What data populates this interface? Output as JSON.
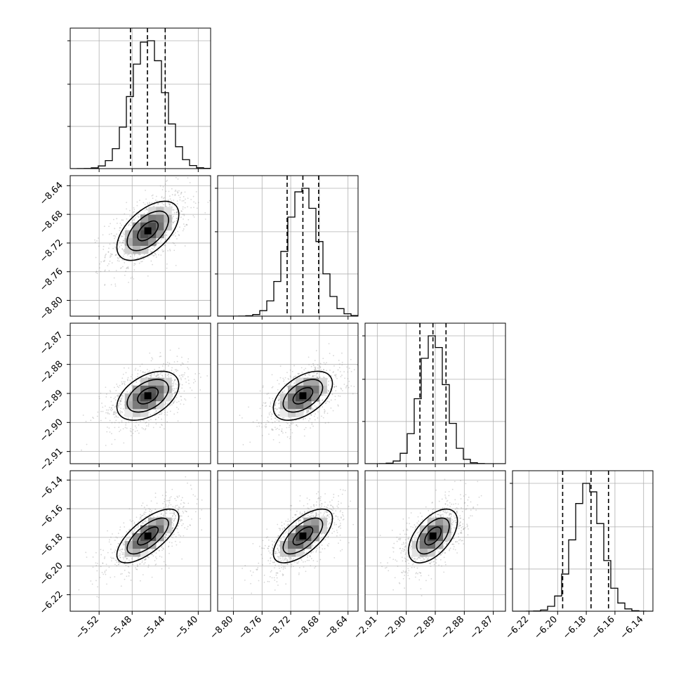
{
  "chart_data": {
    "type": "corner",
    "grid": true,
    "parameters": [
      {
        "range": [
          -5.555,
          -5.385
        ],
        "ticks": [
          "-5.52",
          "-5.48",
          "-5.44",
          "-5.40"
        ],
        "tick_values": [
          -5.52,
          -5.48,
          -5.44,
          -5.4
        ],
        "quantiles": [
          -5.482,
          -5.4615,
          -5.44
        ],
        "mean": -5.461,
        "sd": 0.02
      },
      {
        "range": [
          -8.822,
          -8.626
        ],
        "ticks": [
          "-8.64",
          "-8.68",
          "-8.72",
          "-8.76",
          "-8.80"
        ],
        "tick_values": [
          -8.64,
          -8.68,
          -8.72,
          -8.76,
          -8.8
        ],
        "quantiles": [
          -8.725,
          -8.703,
          -8.681
        ],
        "mean": -8.703,
        "sd": 0.022
      },
      {
        "range": [
          -2.9142,
          -2.8658
        ],
        "ticks": [
          "-2.87",
          "-2.88",
          "-2.89",
          "-2.90",
          "-2.91"
        ],
        "tick_values": [
          -2.87,
          -2.88,
          -2.89,
          -2.9,
          -2.91
        ],
        "quantiles": [
          -2.8953,
          -2.8908,
          -2.8863
        ],
        "mean": -2.8908,
        "sd": 0.0045
      },
      {
        "range": [
          -6.2315,
          -6.1335
        ],
        "ticks": [
          "-6.14",
          "-6.16",
          "-6.18",
          "-6.20",
          "-6.22"
        ],
        "tick_values": [
          -6.14,
          -6.16,
          -6.18,
          -6.2,
          -6.22
        ],
        "quantiles": [
          -6.1965,
          -6.1767,
          -6.1645
        ],
        "mean": -6.179,
        "sd": 0.01
      }
    ],
    "x_tick_labels": [
      [
        "-5.52",
        "-5.48",
        "-5.44",
        "-5.40"
      ],
      [
        "-8.80",
        "-8.76",
        "-8.72",
        "-8.68",
        "-8.64"
      ],
      [
        "-2.91",
        "-2.90",
        "-2.89",
        "-2.88",
        "-2.87"
      ],
      [
        "-6.22",
        "-6.20",
        "-6.18",
        "-6.16",
        "-6.14"
      ]
    ],
    "correlations": [
      [
        0,
        0.55,
        0.45,
        0.7
      ],
      [
        0.55,
        0,
        0.5,
        0.65
      ],
      [
        0.45,
        0.5,
        0,
        0.55
      ],
      [
        0.7,
        0.65,
        0.55,
        0
      ]
    ],
    "histogram_bins": 20,
    "contour_levels": [
      0.5,
      1.0,
      1.5
    ],
    "colors": {
      "line": "#000000",
      "grid": "#b0b0b0",
      "points": "#8c8c8c"
    }
  }
}
